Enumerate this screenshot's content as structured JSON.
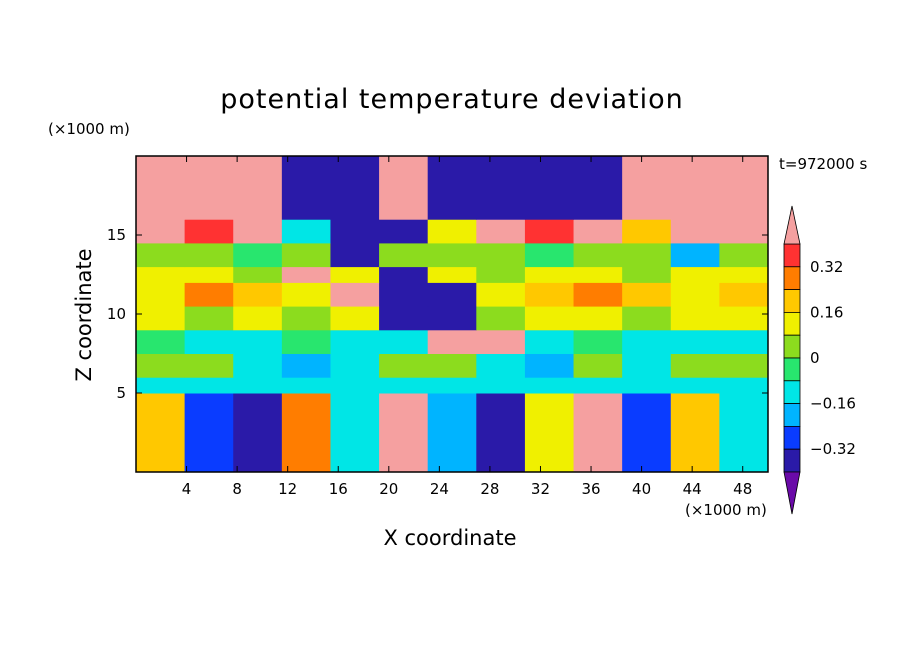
{
  "chart_data": {
    "type": "heatmap",
    "title": "potential temperature deviation",
    "xlabel": "X coordinate",
    "ylabel": "Z coordinate",
    "x_unit": "(×1000 m)",
    "y_unit": "(×1000 m)",
    "time_label": "t=972000 s",
    "xlim": [
      0,
      50
    ],
    "ylim": [
      0,
      20
    ],
    "x_ticks": [
      4,
      8,
      12,
      16,
      20,
      24,
      28,
      32,
      36,
      40,
      44,
      48
    ],
    "y_ticks": [
      5,
      10,
      15
    ],
    "colorbar": {
      "levels": [
        -0.4,
        -0.32,
        -0.24,
        -0.16,
        -0.08,
        0,
        0.08,
        0.16,
        0.24,
        0.32,
        0.4
      ],
      "tick_labels": [
        "0.32",
        "0.16",
        "0",
        "−0.16",
        "−0.32"
      ],
      "tick_values": [
        0.32,
        0.16,
        0,
        -0.16,
        -0.32
      ],
      "colors": [
        "#6a0aa8",
        "#2a1aa8",
        "#0a3cff",
        "#00b4ff",
        "#00e6e6",
        "#28e66e",
        "#8cdc1e",
        "#f0f000",
        "#ffc800",
        "#ff7d00",
        "#ff3232",
        "#f5a0a0"
      ],
      "extend": "both"
    },
    "bands": [
      {
        "z": [
          0,
          5
        ],
        "values": [
          0.2,
          -0.3,
          -0.4,
          0.3,
          -0.1,
          0.4,
          -0.2,
          -0.4,
          0.1,
          0.4,
          -0.3,
          0.2,
          -0.1
        ]
      },
      {
        "z": [
          5,
          6
        ],
        "values": [
          -0.1,
          -0.1,
          -0.1,
          -0.1,
          -0.1,
          -0.1,
          -0.1,
          -0.1,
          -0.1,
          -0.1,
          -0.1,
          -0.1,
          -0.1
        ]
      },
      {
        "z": [
          6,
          7.5
        ],
        "values": [
          0.0,
          0.0,
          -0.1,
          -0.2,
          -0.1,
          0.0,
          0.0,
          -0.1,
          -0.2,
          0.0,
          -0.1,
          0.0,
          0.0
        ]
      },
      {
        "z": [
          7.5,
          9
        ],
        "values": [
          -0.08,
          -0.1,
          -0.1,
          -0.08,
          -0.1,
          -0.1,
          0.4,
          0.4,
          -0.1,
          -0.08,
          -0.1,
          -0.1,
          -0.1
        ]
      },
      {
        "z": [
          9,
          10.5
        ],
        "values": [
          0.08,
          0.05,
          0.1,
          0.05,
          0.08,
          -0.4,
          -0.4,
          0.05,
          0.1,
          0.08,
          0.05,
          0.1,
          0.08
        ]
      },
      {
        "z": [
          10.5,
          12
        ],
        "values": [
          0.15,
          0.25,
          0.2,
          0.15,
          0.4,
          -0.4,
          -0.4,
          0.15,
          0.2,
          0.25,
          0.2,
          0.15,
          0.2
        ]
      },
      {
        "z": [
          12,
          13
        ],
        "values": [
          0.1,
          0.15,
          0.05,
          0.4,
          0.1,
          -0.4,
          0.1,
          0.05,
          0.15,
          0.1,
          0.05,
          0.1,
          0.1
        ]
      },
      {
        "z": [
          13,
          14.5
        ],
        "values": [
          0.0,
          0.05,
          -0.05,
          0.0,
          -0.4,
          0.0,
          0.05,
          0.0,
          -0.05,
          0.0,
          0.05,
          -0.2,
          0.0
        ]
      },
      {
        "z": [
          14.5,
          16
        ],
        "values": [
          0.4,
          0.35,
          0.4,
          -0.1,
          -0.4,
          -0.4,
          0.1,
          0.4,
          0.35,
          0.4,
          0.2,
          0.4,
          0.4
        ]
      },
      {
        "z": [
          16,
          20
        ],
        "values": [
          0.4,
          0.4,
          0.4,
          -0.4,
          -0.4,
          0.4,
          -0.4,
          -0.4,
          -0.4,
          -0.4,
          0.4,
          0.4,
          0.4
        ]
      }
    ]
  }
}
